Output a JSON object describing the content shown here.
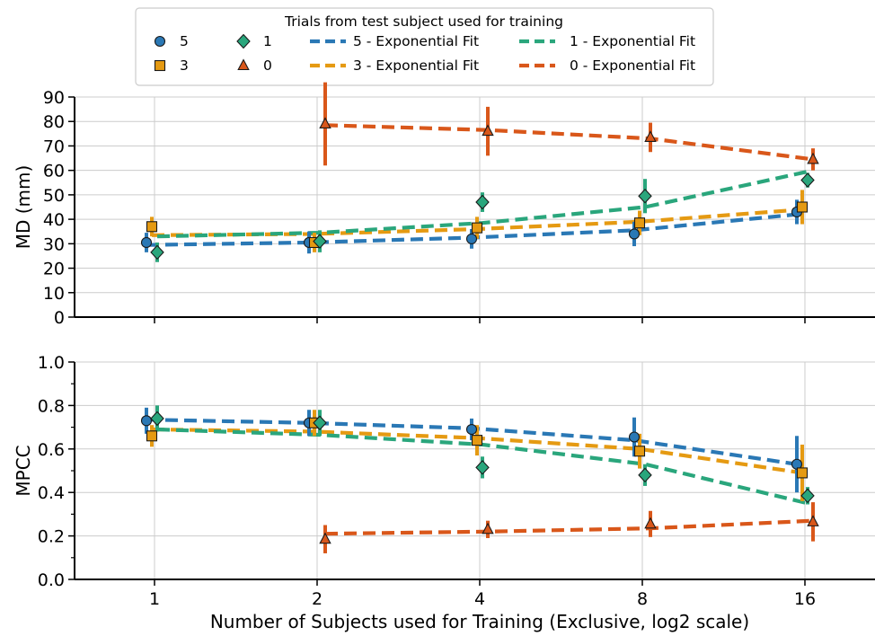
{
  "chart_data": [
    {
      "type": "line",
      "panel": "top",
      "ylabel": "MD (mm)",
      "ylim": [
        0,
        90
      ],
      "yticks": [
        0,
        10,
        20,
        30,
        40,
        50,
        60,
        70,
        80,
        90
      ],
      "x": [
        1,
        2,
        4,
        8,
        16
      ],
      "xscale": "log2",
      "grid": true,
      "series": [
        {
          "name": "5",
          "key": "s5",
          "points": [
            30.5,
            30.5,
            32,
            34,
            43
          ],
          "err": [
            4,
            4.5,
            4,
            5,
            5
          ],
          "fit": [
            29.5,
            30.5,
            32.5,
            35.5,
            42
          ]
        },
        {
          "name": "3",
          "key": "s3",
          "points": [
            37,
            30.5,
            36.5,
            38.5,
            45
          ],
          "err": [
            4,
            4,
            4.5,
            5,
            7
          ],
          "fit": [
            33.5,
            34,
            36,
            39,
            44
          ]
        },
        {
          "name": "1",
          "key": "s1",
          "points": [
            26.5,
            31,
            47,
            49.5,
            56
          ],
          "err": [
            4,
            4.5,
            4,
            7,
            3
          ],
          "fit": [
            33,
            34.5,
            38.5,
            45,
            59.5
          ]
        },
        {
          "name": "0",
          "key": "s0",
          "points": [
            null,
            79,
            76,
            73.5,
            64.5
          ],
          "err": [
            null,
            17,
            10,
            6,
            4.5
          ],
          "fit": [
            null,
            78.5,
            76.5,
            73,
            64.5
          ]
        }
      ]
    },
    {
      "type": "line",
      "panel": "bottom",
      "ylabel": "MPCC",
      "xlabel": "Number of Subjects used for Training (Exclusive, log2 scale)",
      "ylim": [
        0.0,
        1.0
      ],
      "yticks": [
        "0.0",
        "0.2",
        "0.4",
        "0.6",
        "0.8",
        "1.0"
      ],
      "x": [
        1,
        2,
        4,
        8,
        16
      ],
      "xticks": [
        "1",
        "2",
        "4",
        "8",
        "16"
      ],
      "xscale": "log2",
      "grid": true,
      "series": [
        {
          "name": "5",
          "key": "s5",
          "points": [
            0.73,
            0.72,
            0.69,
            0.655,
            0.53
          ],
          "err": [
            0.06,
            0.06,
            0.05,
            0.09,
            0.13
          ],
          "fit": [
            0.735,
            0.72,
            0.695,
            0.64,
            0.53
          ]
        },
        {
          "name": "3",
          "key": "s3",
          "points": [
            0.66,
            0.72,
            0.64,
            0.59,
            0.49
          ],
          "err": [
            0.05,
            0.06,
            0.07,
            0.08,
            0.13
          ],
          "fit": [
            0.69,
            0.68,
            0.65,
            0.6,
            0.49
          ]
        },
        {
          "name": "1",
          "key": "s1",
          "points": [
            0.74,
            0.72,
            0.515,
            0.48,
            0.385
          ],
          "err": [
            0.06,
            0.06,
            0.05,
            0.05,
            0.04
          ],
          "fit": [
            0.69,
            0.665,
            0.62,
            0.53,
            0.35
          ]
        },
        {
          "name": "0",
          "key": "s0",
          "points": [
            null,
            0.185,
            0.23,
            0.255,
            0.265
          ],
          "err": [
            null,
            0.065,
            0.04,
            0.06,
            0.09
          ],
          "fit": [
            null,
            0.21,
            0.22,
            0.235,
            0.27
          ]
        }
      ]
    }
  ],
  "legend": {
    "title": "Trials from test subject used for training",
    "placement": "top-center",
    "marker_entries": [
      {
        "key": "s5",
        "label": "5"
      },
      {
        "key": "s3",
        "label": "3"
      },
      {
        "key": "s1",
        "label": "1"
      },
      {
        "key": "s0",
        "label": "0"
      }
    ],
    "fit_entries": [
      {
        "key": "s5",
        "label": "5 - Exponential Fit"
      },
      {
        "key": "s3",
        "label": "3 - Exponential Fit"
      },
      {
        "key": "s1",
        "label": "1 - Exponential Fit"
      },
      {
        "key": "s0",
        "label": "0 - Exponential Fit"
      }
    ]
  },
  "colors": {
    "s5": "#2a78b5",
    "s3": "#e59a12",
    "s1": "#2aa67c",
    "s0": "#d9571a",
    "grid": "#cccccc"
  },
  "markers": {
    "s5": "circle",
    "s3": "square",
    "s1": "diamond",
    "s0": "triangle"
  }
}
